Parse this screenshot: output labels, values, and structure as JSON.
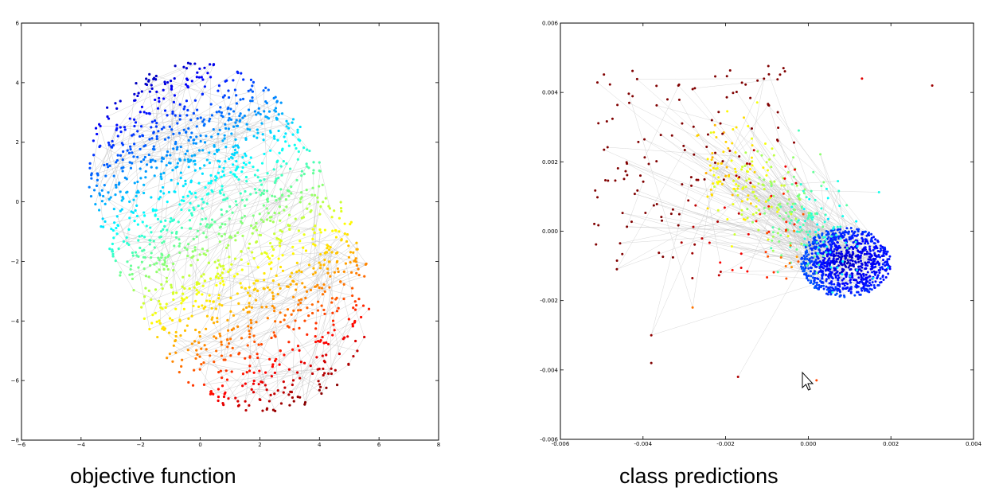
{
  "captions": {
    "left": "objective function",
    "right": "class predictions"
  },
  "chart_data": [
    {
      "type": "scatter",
      "title": "",
      "xlabel": "",
      "ylabel": "",
      "xlim": [
        -6,
        8
      ],
      "ylim": [
        -8,
        6
      ],
      "xticks": [
        -6,
        -4,
        -2,
        0,
        2,
        4,
        6,
        8
      ],
      "yticks": [
        -8,
        -6,
        -4,
        -2,
        0,
        2,
        4,
        6
      ],
      "xtick_labels": [
        "−6",
        "−4",
        "−2",
        "0",
        "2",
        "4",
        "6",
        "8"
      ],
      "ytick_labels": [
        "−8",
        "−6",
        "−4",
        "−2",
        "0",
        "2",
        "4",
        "6"
      ],
      "grid": false,
      "colormap": "jet",
      "connecting_lines": true,
      "line_color": "#bdbdbd",
      "cluster": {
        "shape": "elongated blob",
        "center": [
          1.0,
          -1.2
        ],
        "extent_x": [
          -4.2,
          6.3
        ],
        "extent_y": [
          -7.1,
          4.5
        ],
        "color_gradient": "blue (top-left) to red (bottom-right)",
        "approx_points": 1500
      }
    },
    {
      "type": "scatter",
      "title": "",
      "xlabel": "",
      "ylabel": "",
      "xlim": [
        -0.006,
        0.004
      ],
      "ylim": [
        -0.006,
        0.006
      ],
      "xticks": [
        -0.006,
        -0.004,
        -0.002,
        0.0,
        0.002,
        0.004
      ],
      "yticks": [
        -0.006,
        -0.004,
        -0.002,
        0.0,
        0.002,
        0.004,
        0.006
      ],
      "xtick_labels": [
        "-0.006",
        "-0.004",
        "-0.002",
        "0.000",
        "0.002",
        "0.004"
      ],
      "ytick_labels": [
        "-0.006",
        "-0.004",
        "-0.002",
        "0.000",
        "0.002",
        "0.004",
        "0.006"
      ],
      "grid": false,
      "colormap": "jet",
      "connecting_lines": true,
      "line_color": "#bdbdbd",
      "cluster": {
        "shape": "dense blue core with sparse red fan",
        "core_center": [
          0.0009,
          -0.0009
        ],
        "extent_x": [
          -0.0053,
          0.003
        ],
        "extent_y": [
          -0.0043,
          0.0052
        ],
        "color_gradient": "blue (dense lower-right) to red (sparse upper-left)",
        "approx_points": 1300
      }
    }
  ]
}
